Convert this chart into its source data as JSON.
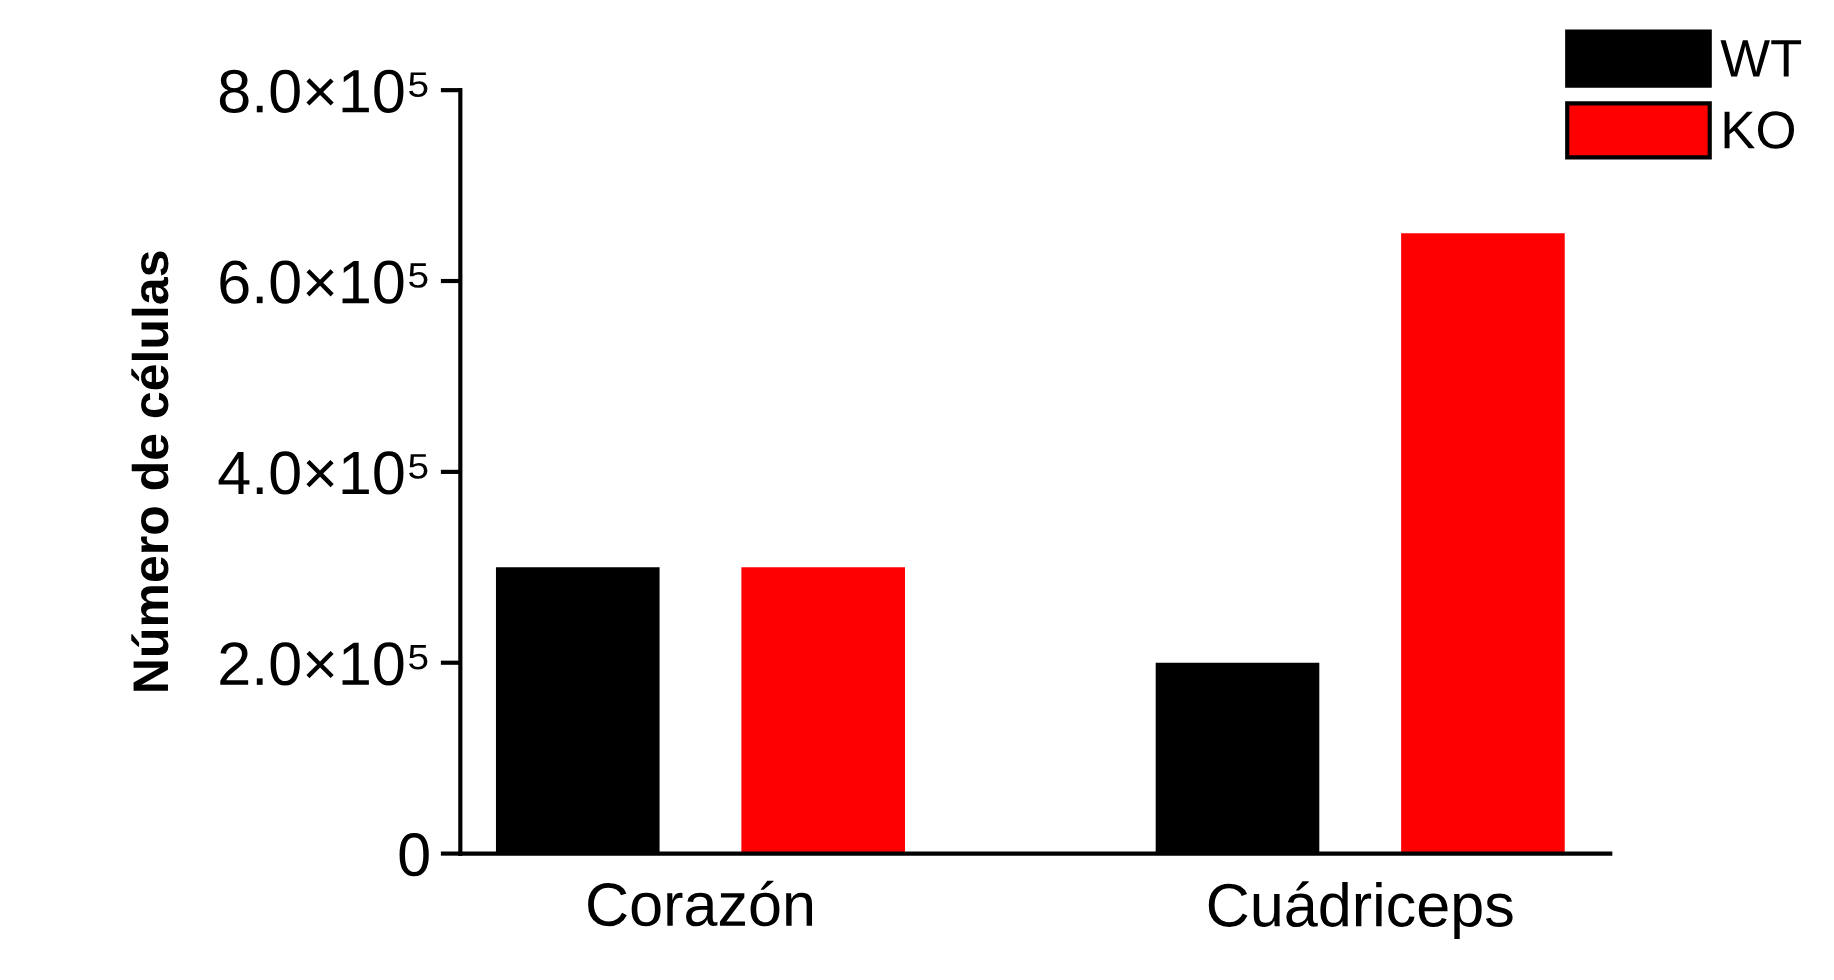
{
  "chart_data": {
    "type": "bar",
    "ylabel": "Número de células",
    "categories": [
      "Corazón",
      "Cuádriceps"
    ],
    "series": [
      {
        "name": "WT",
        "color": "#000000",
        "values": [
          300000,
          200000
        ]
      },
      {
        "name": "KO",
        "color": "#ff0000",
        "values": [
          300000,
          650000
        ]
      }
    ],
    "ylim": [
      0,
      800000
    ],
    "yticks": [
      {
        "value": 0,
        "label": "0"
      },
      {
        "value": 200000,
        "label": "2.0×10⁵"
      },
      {
        "value": 400000,
        "label": "4.0×10⁵"
      },
      {
        "value": 600000,
        "label": "6.0×10⁵"
      },
      {
        "value": 800000,
        "label": "8.0×10⁵"
      }
    ],
    "grid": false,
    "legend": "top right"
  }
}
